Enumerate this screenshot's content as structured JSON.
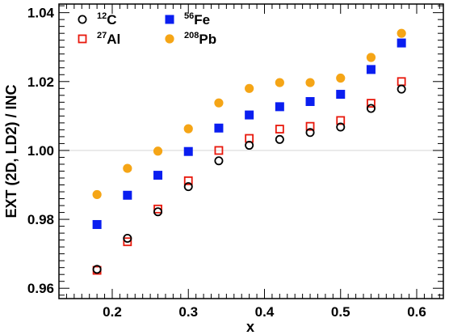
{
  "chart_data": {
    "type": "scatter",
    "xlabel": "x",
    "ylabel": "EXT (2D, LD2) / INC",
    "xlim": [
      0.13,
      0.635
    ],
    "ylim": [
      0.957,
      1.0425
    ],
    "x_ticks": [
      "0.2",
      "0.3",
      "0.4",
      "0.5",
      "0.6"
    ],
    "y_ticks": [
      "0.96",
      "0.98",
      "1.00",
      "1.02",
      "1.04"
    ],
    "reference_line": 1.0,
    "grid": false,
    "legend_position": "top-left",
    "series": [
      {
        "name_sup": "12",
        "name_base": "C",
        "marker": "open-circle",
        "color": "#000000",
        "x": [
          0.18,
          0.22,
          0.26,
          0.3,
          0.34,
          0.38,
          0.42,
          0.46,
          0.5,
          0.54,
          0.58
        ],
        "y": [
          0.9655,
          0.9745,
          0.9822,
          0.9895,
          0.997,
          1.0015,
          1.0032,
          1.0052,
          1.0068,
          1.0122,
          1.0178
        ]
      },
      {
        "name_sup": "27",
        "name_base": "Al",
        "marker": "open-square",
        "color": "#e8180c",
        "x": [
          0.18,
          0.22,
          0.26,
          0.3,
          0.34,
          0.38,
          0.42,
          0.46,
          0.5,
          0.54,
          0.58
        ],
        "y": [
          0.9652,
          0.9735,
          0.983,
          0.9912,
          1.0,
          1.0035,
          1.0062,
          1.007,
          1.0087,
          1.0137,
          1.02
        ]
      },
      {
        "name_sup": "56",
        "name_base": "Fe",
        "marker": "filled-square",
        "color": "#0a1ef0",
        "x": [
          0.18,
          0.22,
          0.26,
          0.3,
          0.34,
          0.38,
          0.42,
          0.46,
          0.5,
          0.54,
          0.58
        ],
        "y": [
          0.9785,
          0.987,
          0.9928,
          0.9997,
          1.0065,
          1.0103,
          1.0127,
          1.0142,
          1.0163,
          1.0235,
          1.0312
        ]
      },
      {
        "name_sup": "208",
        "name_base": "Pb",
        "marker": "filled-circle",
        "color": "#f5a516",
        "x": [
          0.18,
          0.22,
          0.26,
          0.3,
          0.34,
          0.38,
          0.42,
          0.46,
          0.5,
          0.54,
          0.58
        ],
        "y": [
          0.9872,
          0.9948,
          0.9998,
          1.0063,
          1.0138,
          1.018,
          1.0197,
          1.0197,
          1.021,
          1.027,
          1.034
        ]
      }
    ]
  }
}
